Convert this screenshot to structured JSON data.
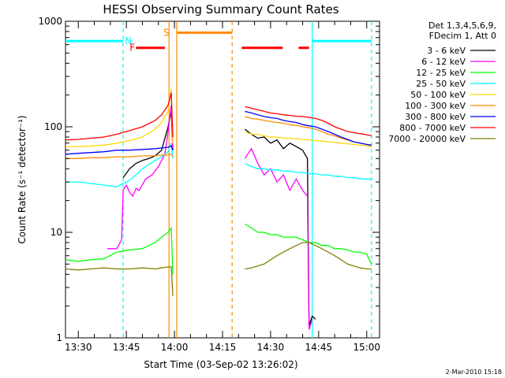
{
  "chart_data": {
    "type": "line",
    "title": "HESSI Observing Summary Count Rates",
    "xlabel": "Start Time (03-Sep-02 13:26:02)",
    "ylabel": "Count Rate (s⁻¹ detector⁻¹)",
    "x_unit": "minutes after 13:26:02",
    "xlim": [
      0,
      98
    ],
    "ylim": [
      1,
      1000
    ],
    "yscale": "log",
    "x_ticks": [
      {
        "label": "13:30",
        "x": 4
      },
      {
        "label": "13:45",
        "x": 19
      },
      {
        "label": "14:00",
        "x": 34
      },
      {
        "label": "14:15",
        "x": 49
      },
      {
        "label": "14:30",
        "x": 64
      },
      {
        "label": "14:45",
        "x": 79
      },
      {
        "label": "15:00",
        "x": 94
      }
    ],
    "y_ticks": [
      {
        "label": "1",
        "y": 1
      },
      {
        "label": "10",
        "y": 10
      },
      {
        "label": "100",
        "y": 100
      },
      {
        "label": "1000",
        "y": 1000
      }
    ],
    "legend_header": [
      "Det 1,3,4,5,6,9,",
      "FDecim 1, Att 0"
    ],
    "legend_position": "outside-right",
    "series": [
      {
        "name": "3 - 6 keV",
        "color": "#000000",
        "x": [
          18,
          20,
          22,
          24,
          26,
          28,
          30,
          32,
          33,
          33.5,
          56,
          58,
          60,
          62,
          64,
          66,
          68,
          70,
          72,
          74,
          75.5,
          76,
          77,
          78
        ],
        "y": [
          33,
          40,
          45,
          48,
          50,
          53,
          60,
          100,
          140,
          60,
          95,
          85,
          78,
          80,
          70,
          75,
          62,
          70,
          65,
          60,
          50,
          1.3,
          1.6,
          1.5
        ]
      },
      {
        "name": "6 - 12 keV",
        "color": "#ff00ff",
        "x": [
          13,
          16,
          17.5,
          18,
          19,
          20,
          21,
          22,
          23,
          25,
          27,
          29,
          31,
          32,
          33,
          33.5,
          56,
          58,
          60,
          62,
          64,
          66,
          68,
          70,
          72,
          74,
          75.5,
          76,
          77
        ],
        "y": [
          7,
          7,
          8.5,
          25,
          28,
          24,
          22,
          26,
          25,
          32,
          35,
          42,
          55,
          90,
          160,
          60,
          50,
          62,
          45,
          35,
          40,
          30,
          35,
          25,
          32,
          25,
          22,
          1.2,
          1.5
        ]
      },
      {
        "name": "12 - 25 keV",
        "color": "#00ff00",
        "x": [
          0,
          4,
          8,
          12,
          16,
          20,
          24,
          28,
          30,
          32,
          33,
          33.5,
          56,
          58,
          60,
          62,
          64,
          66,
          68,
          70,
          72,
          74,
          76,
          78,
          80,
          82,
          84,
          86,
          88,
          90,
          92,
          94,
          95.5
        ],
        "y": [
          5.5,
          5.3,
          5.5,
          5.6,
          6.5,
          6.8,
          7,
          8,
          9,
          10,
          11,
          4,
          12,
          11,
          10,
          10,
          9.5,
          9.5,
          9,
          9,
          9,
          8.5,
          8,
          8,
          7.5,
          7.5,
          7,
          7,
          6.8,
          6.5,
          6.5,
          6.2,
          5
        ]
      },
      {
        "name": "25 - 50 keV",
        "color": "#00ffff",
        "x": [
          0,
          4,
          8,
          12,
          16,
          18,
          20,
          22,
          24,
          26,
          28,
          30,
          32,
          33,
          33.5,
          56,
          58,
          60,
          62,
          64,
          66,
          68,
          70,
          72,
          74,
          76,
          78,
          80,
          82,
          84,
          86,
          88,
          90,
          92,
          94,
          95.5
        ],
        "y": [
          30,
          30,
          29,
          28,
          27,
          29,
          31,
          35,
          40,
          44,
          48,
          52,
          58,
          70,
          50,
          45,
          42,
          40,
          40,
          39,
          39,
          38,
          38,
          37,
          37,
          36,
          36,
          35,
          35,
          34,
          34,
          33,
          33,
          32,
          32,
          32
        ]
      },
      {
        "name": "50 - 100 keV",
        "color": "#ffd700",
        "x": [
          0,
          4,
          8,
          12,
          16,
          20,
          24,
          28,
          30,
          32,
          33,
          33.5,
          56,
          58,
          60,
          62,
          64,
          66,
          68,
          70,
          72,
          74,
          76,
          78,
          80,
          82,
          84,
          86,
          88,
          90,
          92,
          94,
          95.5
        ],
        "y": [
          65,
          65,
          66,
          67,
          70,
          74,
          80,
          95,
          110,
          140,
          230,
          70,
          90,
          85,
          85,
          82,
          80,
          80,
          78,
          78,
          77,
          76,
          75,
          74,
          73,
          72,
          71,
          70,
          69,
          68,
          67,
          66,
          65
        ]
      },
      {
        "name": "100 - 300 keV",
        "color": "#ff8c00",
        "x": [
          0,
          4,
          8,
          12,
          16,
          20,
          24,
          28,
          30,
          32,
          33,
          33.5,
          56,
          58,
          60,
          62,
          64,
          66,
          68,
          70,
          72,
          74,
          76,
          78,
          80,
          82,
          84,
          86,
          88,
          90,
          92,
          94,
          95.5
        ],
        "y": [
          50,
          50,
          51,
          51,
          52,
          52,
          53,
          53,
          54,
          54,
          55,
          52,
          125,
          120,
          118,
          115,
          112,
          110,
          108,
          105,
          103,
          100,
          98,
          95,
          90,
          85,
          82,
          78,
          75,
          72,
          70,
          68,
          66
        ]
      },
      {
        "name": "300 - 800 keV",
        "color": "#0000ff",
        "x": [
          0,
          4,
          8,
          12,
          16,
          20,
          24,
          28,
          30,
          32,
          33,
          33.5,
          56,
          58,
          60,
          62,
          64,
          66,
          68,
          70,
          72,
          74,
          76,
          78,
          80,
          82,
          84,
          86,
          88,
          90,
          92,
          94,
          95.5
        ],
        "y": [
          55,
          56,
          57,
          58,
          60,
          60,
          61,
          62,
          63,
          64,
          66,
          60,
          140,
          135,
          130,
          125,
          122,
          120,
          115,
          112,
          110,
          105,
          102,
          100,
          95,
          90,
          85,
          80,
          76,
          72,
          70,
          68,
          67
        ]
      },
      {
        "name": "800 - 7000 keV",
        "color": "#ff0000",
        "x": [
          0,
          4,
          8,
          12,
          16,
          20,
          24,
          28,
          30,
          32,
          33,
          33.5,
          56,
          58,
          60,
          62,
          64,
          66,
          68,
          70,
          72,
          74,
          76,
          78,
          80,
          82,
          84,
          86,
          88,
          90,
          92,
          94,
          95.5
        ],
        "y": [
          75,
          76,
          78,
          80,
          85,
          92,
          100,
          115,
          130,
          160,
          210,
          80,
          155,
          150,
          145,
          140,
          135,
          133,
          130,
          128,
          126,
          125,
          123,
          120,
          115,
          108,
          100,
          95,
          90,
          88,
          86,
          84,
          82
        ]
      },
      {
        "name": "7000 - 20000 keV",
        "color": "#808000",
        "x": [
          0,
          4,
          8,
          12,
          16,
          20,
          24,
          28,
          30,
          32,
          33,
          33.5,
          56,
          58,
          60,
          62,
          64,
          66,
          68,
          70,
          72,
          74,
          76,
          78,
          80,
          82,
          84,
          86,
          88,
          90,
          92,
          94,
          95.5
        ],
        "y": [
          4.5,
          4.4,
          4.5,
          4.6,
          4.5,
          4.5,
          4.6,
          4.5,
          4.6,
          4.7,
          4.7,
          2.5,
          4.5,
          4.6,
          4.8,
          5,
          5.5,
          6,
          6.5,
          7,
          7.5,
          8,
          8,
          7.5,
          7,
          6.5,
          6,
          5.5,
          5,
          4.8,
          4.6,
          4.5,
          4.5
        ]
      }
    ],
    "vertical_markers": [
      {
        "x": 18,
        "color": "#00ffff",
        "style": "dashed"
      },
      {
        "x": 32.3,
        "color": "#ff8c00",
        "style": "solid"
      },
      {
        "x": 34.7,
        "color": "#ff8c00",
        "style": "solid"
      },
      {
        "x": 52,
        "color": "#ff8c00",
        "style": "dashed"
      },
      {
        "x": 77,
        "color": "#00ffff",
        "style": "solid"
      },
      {
        "x": 95.5,
        "color": "#00ffff",
        "style": "dashed"
      }
    ],
    "flag_bars": [
      {
        "label": "N",
        "color": "#00ffff",
        "y": 650,
        "x_start": 0,
        "x_end": 18,
        "label_x": 18.5
      },
      {
        "label": "N",
        "color": "#00ffff",
        "y": 650,
        "x_start": 77,
        "x_end": 95.5
      },
      {
        "label": "F",
        "color": "#ff0000",
        "y": 560,
        "x_start": 22,
        "x_end": 31,
        "label_x": 20,
        "dashed": false
      },
      {
        "label": "F",
        "color": "#ff0000",
        "y": 560,
        "x_start": 55,
        "x_end": 76,
        "dashed": true
      },
      {
        "label": "S",
        "color": "#ff8c00",
        "y": 780,
        "x_start": 34.7,
        "x_end": 52,
        "label_x": 30.5
      }
    ]
  },
  "footer": {
    "text": "2-Mar-2010 15:18"
  }
}
